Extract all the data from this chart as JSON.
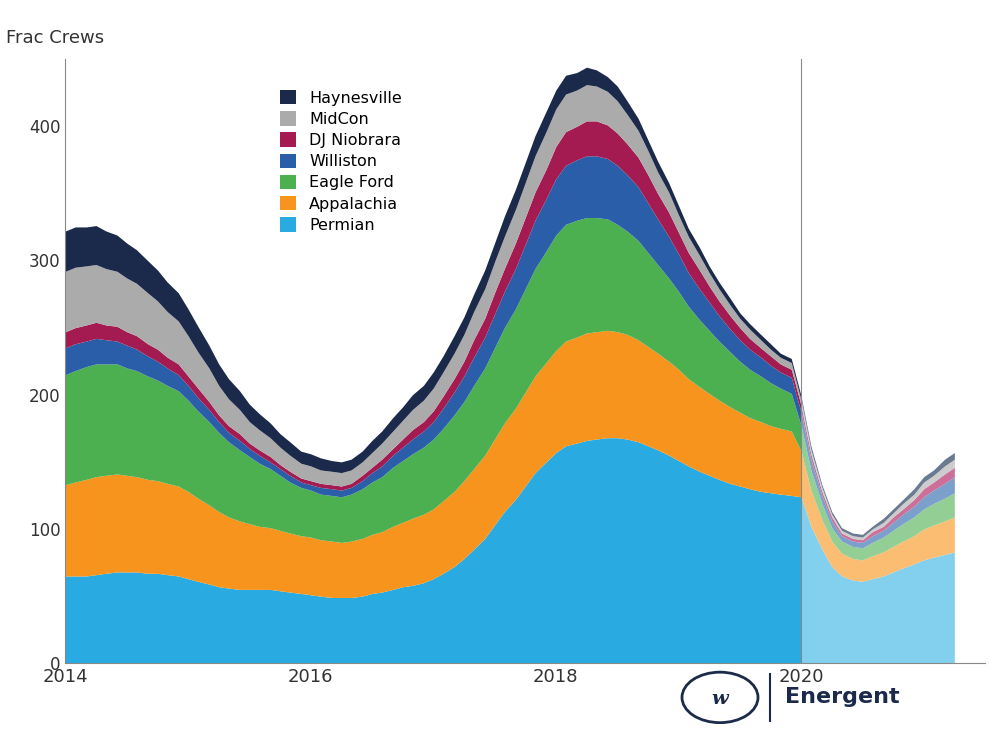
{
  "title": "Frac Crews",
  "ylabel": "Frac Crews",
  "xlim": [
    2014.0,
    2021.5
  ],
  "ylim": [
    0,
    450
  ],
  "yticks": [
    0,
    100,
    200,
    300,
    400
  ],
  "xticks": [
    2014,
    2016,
    2018,
    2020
  ],
  "background_color": "#ffffff",
  "forecast_start": 2020.0,
  "legend_order": [
    "Haynesville",
    "MidCon",
    "DJ Niobrara",
    "Williston",
    "Eagle Ford",
    "Appalachia",
    "Permian"
  ],
  "series": [
    {
      "name": "Permian",
      "color": "#29ABE2",
      "forecast_color": "#82CFEE"
    },
    {
      "name": "Appalachia",
      "color": "#F7941D",
      "forecast_color": "#FBBD72"
    },
    {
      "name": "Eagle Ford",
      "color": "#4CAF50",
      "forecast_color": "#93CF95"
    },
    {
      "name": "Williston",
      "color": "#2B5EA8",
      "forecast_color": "#7BA0CC"
    },
    {
      "name": "DJ Niobrara",
      "color": "#A31B50",
      "forecast_color": "#CC7099"
    },
    {
      "name": "MidCon",
      "color": "#ABABAB",
      "forecast_color": "#CCCCCC"
    },
    {
      "name": "Haynesville",
      "color": "#1B2A4A",
      "forecast_color": "#6A7A90"
    }
  ],
  "dates": [
    2014.0,
    2014.08,
    2014.17,
    2014.25,
    2014.33,
    2014.42,
    2014.5,
    2014.58,
    2014.67,
    2014.75,
    2014.83,
    2014.92,
    2015.0,
    2015.08,
    2015.17,
    2015.25,
    2015.33,
    2015.42,
    2015.5,
    2015.58,
    2015.67,
    2015.75,
    2015.83,
    2015.92,
    2016.0,
    2016.08,
    2016.17,
    2016.25,
    2016.33,
    2016.42,
    2016.5,
    2016.58,
    2016.67,
    2016.75,
    2016.83,
    2016.92,
    2017.0,
    2017.08,
    2017.17,
    2017.25,
    2017.33,
    2017.42,
    2017.5,
    2017.58,
    2017.67,
    2017.75,
    2017.83,
    2017.92,
    2018.0,
    2018.08,
    2018.17,
    2018.25,
    2018.33,
    2018.42,
    2018.5,
    2018.58,
    2018.67,
    2018.75,
    2018.83,
    2018.92,
    2019.0,
    2019.08,
    2019.17,
    2019.25,
    2019.33,
    2019.42,
    2019.5,
    2019.58,
    2019.67,
    2019.75,
    2019.83,
    2019.92,
    2020.0,
    2020.08,
    2020.17,
    2020.25,
    2020.33,
    2020.42,
    2020.5,
    2020.58,
    2020.67,
    2020.75,
    2020.83,
    2020.92,
    2021.0,
    2021.08,
    2021.17,
    2021.25
  ],
  "permian": [
    65,
    65,
    65,
    66,
    67,
    68,
    68,
    68,
    67,
    67,
    66,
    65,
    63,
    61,
    59,
    57,
    56,
    55,
    55,
    55,
    55,
    54,
    53,
    52,
    51,
    50,
    49,
    49,
    49,
    50,
    52,
    53,
    55,
    57,
    58,
    60,
    63,
    67,
    72,
    78,
    85,
    93,
    103,
    113,
    122,
    132,
    142,
    150,
    157,
    162,
    164,
    166,
    167,
    168,
    168,
    167,
    165,
    162,
    159,
    155,
    151,
    147,
    143,
    140,
    137,
    134,
    132,
    130,
    128,
    127,
    126,
    125,
    124,
    102,
    85,
    72,
    65,
    62,
    61,
    63,
    65,
    68,
    71,
    74,
    77,
    79,
    81,
    83
  ],
  "appalachia": [
    68,
    70,
    72,
    73,
    73,
    73,
    72,
    71,
    70,
    69,
    68,
    67,
    65,
    62,
    59,
    56,
    53,
    51,
    49,
    47,
    46,
    45,
    44,
    43,
    43,
    42,
    42,
    41,
    42,
    43,
    44,
    45,
    47,
    48,
    50,
    51,
    52,
    54,
    56,
    58,
    60,
    62,
    64,
    66,
    68,
    70,
    72,
    74,
    76,
    78,
    79,
    80,
    80,
    80,
    79,
    78,
    76,
    74,
    72,
    70,
    68,
    65,
    63,
    61,
    59,
    57,
    55,
    53,
    52,
    50,
    49,
    48,
    34,
    27,
    22,
    19,
    17,
    16,
    16,
    17,
    18,
    19,
    20,
    21,
    23,
    24,
    25,
    26
  ],
  "eagle_ford": [
    82,
    83,
    84,
    84,
    83,
    82,
    80,
    79,
    77,
    75,
    73,
    71,
    68,
    65,
    62,
    59,
    56,
    53,
    50,
    47,
    44,
    41,
    38,
    36,
    35,
    34,
    34,
    34,
    35,
    37,
    39,
    41,
    44,
    46,
    48,
    50,
    52,
    54,
    57,
    59,
    62,
    65,
    68,
    71,
    74,
    77,
    80,
    83,
    86,
    87,
    87,
    86,
    85,
    83,
    80,
    77,
    74,
    70,
    66,
    62,
    58,
    54,
    50,
    47,
    44,
    41,
    38,
    36,
    34,
    32,
    30,
    28,
    19,
    15,
    12,
    10,
    9,
    9,
    9,
    10,
    11,
    12,
    13,
    14,
    15,
    16,
    17,
    18
  ],
  "williston": [
    20,
    20,
    19,
    19,
    18,
    17,
    17,
    16,
    15,
    14,
    13,
    12,
    11,
    10,
    9,
    8,
    7,
    7,
    6,
    6,
    5,
    5,
    5,
    4,
    4,
    5,
    5,
    5,
    5,
    6,
    7,
    8,
    9,
    10,
    11,
    12,
    13,
    15,
    17,
    19,
    21,
    23,
    25,
    27,
    30,
    33,
    36,
    39,
    42,
    44,
    45,
    46,
    46,
    45,
    44,
    42,
    40,
    37,
    34,
    31,
    28,
    25,
    23,
    21,
    19,
    17,
    16,
    15,
    14,
    13,
    12,
    12,
    10,
    8,
    6,
    5,
    4,
    4,
    4,
    5,
    5,
    6,
    7,
    8,
    9,
    10,
    11,
    12
  ],
  "dj_niobrara": [
    12,
    12,
    12,
    12,
    11,
    11,
    10,
    10,
    9,
    9,
    8,
    8,
    7,
    7,
    6,
    5,
    5,
    5,
    4,
    4,
    4,
    3,
    3,
    3,
    3,
    3,
    3,
    3,
    3,
    4,
    4,
    5,
    5,
    6,
    7,
    7,
    8,
    9,
    10,
    11,
    13,
    14,
    16,
    17,
    19,
    20,
    21,
    22,
    24,
    25,
    25,
    26,
    26,
    25,
    24,
    23,
    22,
    21,
    19,
    18,
    16,
    15,
    14,
    12,
    11,
    10,
    9,
    8,
    7,
    7,
    6,
    6,
    5,
    4,
    3,
    3,
    2,
    2,
    2,
    3,
    3,
    4,
    4,
    5,
    6,
    6,
    7,
    7
  ],
  "midcon": [
    45,
    45,
    44,
    43,
    42,
    41,
    40,
    39,
    38,
    36,
    34,
    32,
    30,
    27,
    25,
    22,
    20,
    18,
    16,
    15,
    14,
    13,
    12,
    11,
    11,
    10,
    10,
    10,
    10,
    10,
    11,
    12,
    13,
    14,
    15,
    16,
    17,
    18,
    19,
    20,
    21,
    22,
    23,
    24,
    25,
    26,
    27,
    28,
    28,
    28,
    27,
    27,
    26,
    25,
    24,
    22,
    20,
    18,
    16,
    15,
    13,
    12,
    11,
    10,
    9,
    8,
    7,
    7,
    6,
    5,
    5,
    5,
    4,
    3,
    3,
    2,
    2,
    2,
    2,
    2,
    3,
    3,
    4,
    4,
    5,
    5,
    6,
    6
  ],
  "haynesville": [
    30,
    30,
    29,
    29,
    28,
    27,
    26,
    25,
    24,
    23,
    22,
    21,
    20,
    19,
    17,
    16,
    15,
    14,
    13,
    12,
    11,
    10,
    10,
    9,
    9,
    9,
    8,
    8,
    8,
    8,
    9,
    9,
    10,
    10,
    11,
    11,
    12,
    12,
    13,
    13,
    13,
    14,
    14,
    15,
    15,
    15,
    15,
    15,
    14,
    14,
    13,
    13,
    12,
    11,
    11,
    10,
    9,
    8,
    8,
    7,
    7,
    6,
    6,
    5,
    5,
    5,
    4,
    4,
    4,
    4,
    3,
    3,
    3,
    3,
    2,
    2,
    2,
    2,
    2,
    2,
    3,
    3,
    3,
    4,
    4,
    4,
    5,
    5
  ]
}
